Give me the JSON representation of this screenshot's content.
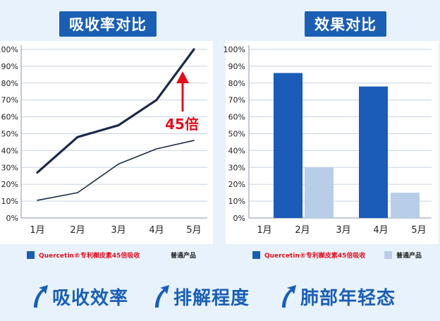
{
  "titles": {
    "left": "吸收率对比",
    "right": "效果对比"
  },
  "charts": [
    {
      "type": "line",
      "title": "吸收率对比",
      "categories": [
        "1月",
        "2月",
        "3月",
        "4月",
        "5月"
      ],
      "yticks": [
        "0%",
        "10%",
        "20%",
        "30%",
        "40%",
        "50%",
        "60%",
        "70%",
        "80%",
        "90%",
        "100%"
      ],
      "ylim": [
        0,
        100
      ],
      "series": [
        {
          "name": "Quercetin®专利槲皮素45倍吸收",
          "values": [
            27,
            48,
            55,
            70,
            100
          ],
          "color": "#1b2a4a"
        },
        {
          "name": "普通产品",
          "values": [
            10.5,
            15,
            32,
            41,
            46
          ],
          "color": "#1b2a4a"
        }
      ],
      "annotation": {
        "text": "45倍",
        "color": "#e0101e"
      }
    },
    {
      "type": "bar",
      "title": "效果对比",
      "categories": [
        "1月",
        "2月",
        "3月",
        "4月",
        "5月"
      ],
      "yticks": [
        "0%",
        "10%",
        "20%",
        "30%",
        "40%",
        "50%",
        "60%",
        "70%",
        "80%",
        "90%",
        "100%"
      ],
      "ylim": [
        0,
        100
      ],
      "series": [
        {
          "name": "Quercetin®专利槲皮素45倍吸收",
          "color": "#1a5cb8",
          "values": [
            null,
            86,
            null,
            78,
            null
          ]
        },
        {
          "name": "普通产品",
          "color": "#b8cde8",
          "values": [
            null,
            30,
            null,
            null,
            15
          ]
        }
      ]
    }
  ],
  "legend": {
    "main_label": "Quercetin®专利槲皮素45倍吸收",
    "main_color": "#1a5cb8",
    "normal_label": "普通产品",
    "normal_color": "#b8cde8"
  },
  "bottom": [
    {
      "label": "吸收效率",
      "icon": "arrow-up-icon"
    },
    {
      "label": "排解程度",
      "icon": "arrow-up-icon"
    },
    {
      "label": "肺部年轻态",
      "icon": "arrow-up-icon"
    }
  ],
  "colors": {
    "accent": "#1a5fb4",
    "background": "#e8f2fc",
    "panel": "#ffffff",
    "annotation": "#e0101e"
  }
}
